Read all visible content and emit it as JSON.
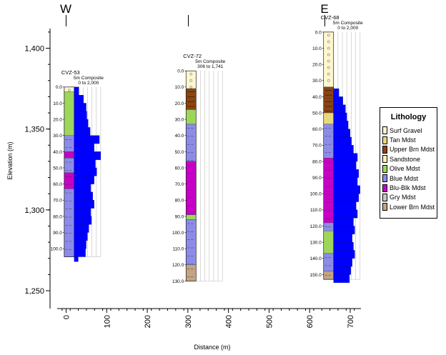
{
  "chart_data": {
    "type": "strip-log-cross-section",
    "directions": {
      "west": "W",
      "east": "E"
    },
    "xlabel": "Distance (m)",
    "ylabel": "Elevation (m)",
    "xticks": [
      0,
      100,
      200,
      300,
      400,
      500,
      600,
      700
    ],
    "yticks": [
      1400,
      1350,
      1300,
      1250
    ],
    "ytick_labels": [
      "1,400",
      "1,350",
      "1,300",
      "1,250"
    ],
    "xlim": [
      -5,
      725
    ],
    "ylim": [
      1240,
      1415
    ],
    "lithology_colors": {
      "Surf Gravel": "#fdf7d0",
      "Tan Mdst": "#e8d87c",
      "Upper Brn Mdst": "#8b4513",
      "Sandstone": "#fff3b8",
      "Olive Mdst": "#9ed65c",
      "Blue Mdst": "#8c8ce8",
      "Blu-Blk Mdst": "#c800c8",
      "Gry Mdst": "#c8c8c8",
      "Lower Brn Mdst": "#c4a484"
    },
    "legend": {
      "title": "Lithology",
      "items": [
        "Surf Gravel",
        "Tan Mdst",
        "Upper Brn Mdst",
        "Sandstone",
        "Olive Mdst",
        "Blue Mdst",
        "Blu-Blk Mdst",
        "Gry Mdst",
        "Lower Brn Mdst"
      ]
    },
    "series_color": "#0000ff",
    "holes": [
      {
        "name": "CVZ-53",
        "distance": 13,
        "collar": 1376,
        "depth_ticks": [
          0,
          10,
          20,
          30,
          40,
          50,
          60,
          70,
          80,
          90,
          100
        ],
        "depth_tick_labels": [
          "0.0",
          "10.0",
          "20.0",
          "30.0",
          "40.0",
          "50.0",
          "60.0",
          "70.0",
          "80.0",
          "90.0",
          "100.0"
        ],
        "max_depth": 105,
        "composite_label": "5m Composite",
        "range_label": "0 to 2,000",
        "max_value": 2000,
        "lithology": [
          {
            "top": 0,
            "bottom": 3,
            "unit": "Surf Gravel"
          },
          {
            "top": 3,
            "bottom": 30,
            "unit": "Olive Mdst"
          },
          {
            "top": 30,
            "bottom": 40,
            "unit": "Blue Mdst"
          },
          {
            "top": 40,
            "bottom": 44,
            "unit": "Blu-Blk Mdst"
          },
          {
            "top": 44,
            "bottom": 53,
            "unit": "Blue Mdst"
          },
          {
            "top": 53,
            "bottom": 63,
            "unit": "Blu-Blk Mdst"
          },
          {
            "top": 63,
            "bottom": 105,
            "unit": "Blue Mdst"
          }
        ],
        "composites": [
          {
            "top": 0,
            "bottom": 5,
            "value": 350
          },
          {
            "top": 5,
            "bottom": 10,
            "value": 700
          },
          {
            "top": 10,
            "bottom": 15,
            "value": 900
          },
          {
            "top": 15,
            "bottom": 20,
            "value": 950
          },
          {
            "top": 20,
            "bottom": 25,
            "value": 1050
          },
          {
            "top": 25,
            "bottom": 30,
            "value": 1200
          },
          {
            "top": 30,
            "bottom": 35,
            "value": 1900
          },
          {
            "top": 35,
            "bottom": 40,
            "value": 1500
          },
          {
            "top": 40,
            "bottom": 45,
            "value": 2000
          },
          {
            "top": 45,
            "bottom": 50,
            "value": 1600
          },
          {
            "top": 50,
            "bottom": 55,
            "value": 1700
          },
          {
            "top": 55,
            "bottom": 60,
            "value": 1500
          },
          {
            "top": 60,
            "bottom": 65,
            "value": 1250
          },
          {
            "top": 65,
            "bottom": 70,
            "value": 1400
          },
          {
            "top": 70,
            "bottom": 75,
            "value": 1500
          },
          {
            "top": 75,
            "bottom": 80,
            "value": 1250
          },
          {
            "top": 80,
            "bottom": 85,
            "value": 1300
          },
          {
            "top": 85,
            "bottom": 90,
            "value": 1100
          },
          {
            "top": 90,
            "bottom": 95,
            "value": 1000
          },
          {
            "top": 95,
            "bottom": 100,
            "value": 900
          },
          {
            "top": 100,
            "bottom": 105,
            "value": 850
          },
          {
            "top": 105,
            "bottom": 108,
            "value": 300
          }
        ]
      },
      {
        "name": "CVZ-72",
        "distance": 313,
        "collar": 1386,
        "depth_ticks": [
          0,
          10,
          20,
          30,
          40,
          50,
          60,
          70,
          80,
          90,
          100,
          110,
          120,
          130
        ],
        "depth_tick_labels": [
          "0.0",
          "10.0",
          "20.0",
          "30.0",
          "40.0",
          "50.0",
          "60.0",
          "70.0",
          "80.0",
          "90.0",
          "100.0",
          "110.0",
          "120.0",
          "130.0"
        ],
        "max_depth": 130,
        "composite_label": "5m Composite",
        "range_label": "306 to 1,741",
        "max_value": 1741,
        "lithology": [
          {
            "top": 0,
            "bottom": 11,
            "unit": "Surf Gravel"
          },
          {
            "top": 11,
            "bottom": 24,
            "unit": "Upper Brn Mdst"
          },
          {
            "top": 24,
            "bottom": 33,
            "unit": "Olive Mdst"
          },
          {
            "top": 33,
            "bottom": 56,
            "unit": "Blue Mdst"
          },
          {
            "top": 56,
            "bottom": 89,
            "unit": "Blu-Blk Mdst"
          },
          {
            "top": 89,
            "bottom": 92,
            "unit": "Olive Mdst"
          },
          {
            "top": 92,
            "bottom": 120,
            "unit": "Blue Mdst"
          },
          {
            "top": 120,
            "bottom": 130,
            "unit": "Lower Brn Mdst"
          }
        ],
        "composites": []
      },
      {
        "name": "CVZ-68",
        "distance": 652,
        "collar": 1410,
        "depth_ticks": [
          0,
          10,
          20,
          30,
          40,
          50,
          60,
          70,
          80,
          90,
          100,
          110,
          120,
          130,
          140,
          150
        ],
        "depth_tick_labels": [
          "0.0",
          "10.0",
          "20.0",
          "30.0",
          "40.0",
          "50.0",
          "60.0",
          "70.0",
          "80.0",
          "90.0",
          "100.0",
          "110.0",
          "120.0",
          "130.0",
          "140.0",
          "150.0"
        ],
        "max_depth": 153,
        "composite_label": "5m Composite",
        "range_label": "0 to 2,000",
        "max_value": 2000,
        "lithology": [
          {
            "top": 0,
            "bottom": 34,
            "unit": "Surf Gravel"
          },
          {
            "top": 34,
            "bottom": 41,
            "unit": "Upper Brn Mdst"
          },
          {
            "top": 41,
            "bottom": 50,
            "unit": "Upper Brn Mdst"
          },
          {
            "top": 50,
            "bottom": 57,
            "unit": "Tan Mdst"
          },
          {
            "top": 57,
            "bottom": 78,
            "unit": "Blue Mdst"
          },
          {
            "top": 78,
            "bottom": 118,
            "unit": "Blu-Blk Mdst"
          },
          {
            "top": 118,
            "bottom": 123,
            "unit": "Blue Mdst"
          },
          {
            "top": 123,
            "bottom": 137,
            "unit": "Olive Mdst"
          },
          {
            "top": 137,
            "bottom": 148,
            "unit": "Blue Mdst"
          },
          {
            "top": 148,
            "bottom": 153,
            "unit": "Lower Brn Mdst"
          }
        ],
        "composites": [
          {
            "top": 35,
            "bottom": 40,
            "value": 400
          },
          {
            "top": 40,
            "bottom": 45,
            "value": 700
          },
          {
            "top": 45,
            "bottom": 50,
            "value": 900
          },
          {
            "top": 50,
            "bottom": 55,
            "value": 1000
          },
          {
            "top": 55,
            "bottom": 60,
            "value": 1100
          },
          {
            "top": 60,
            "bottom": 65,
            "value": 1250
          },
          {
            "top": 65,
            "bottom": 70,
            "value": 1350
          },
          {
            "top": 70,
            "bottom": 75,
            "value": 1500
          },
          {
            "top": 75,
            "bottom": 80,
            "value": 1800
          },
          {
            "top": 80,
            "bottom": 85,
            "value": 1700
          },
          {
            "top": 85,
            "bottom": 90,
            "value": 1900
          },
          {
            "top": 90,
            "bottom": 95,
            "value": 1800
          },
          {
            "top": 95,
            "bottom": 100,
            "value": 2000
          },
          {
            "top": 100,
            "bottom": 105,
            "value": 1900
          },
          {
            "top": 105,
            "bottom": 110,
            "value": 1700
          },
          {
            "top": 110,
            "bottom": 115,
            "value": 1800
          },
          {
            "top": 115,
            "bottom": 120,
            "value": 1500
          },
          {
            "top": 120,
            "bottom": 125,
            "value": 1600
          },
          {
            "top": 125,
            "bottom": 130,
            "value": 1400
          },
          {
            "top": 130,
            "bottom": 135,
            "value": 1500
          },
          {
            "top": 135,
            "bottom": 140,
            "value": 1600
          },
          {
            "top": 140,
            "bottom": 145,
            "value": 1400
          },
          {
            "top": 145,
            "bottom": 150,
            "value": 1300
          },
          {
            "top": 150,
            "bottom": 155,
            "value": 1200
          }
        ]
      }
    ]
  }
}
